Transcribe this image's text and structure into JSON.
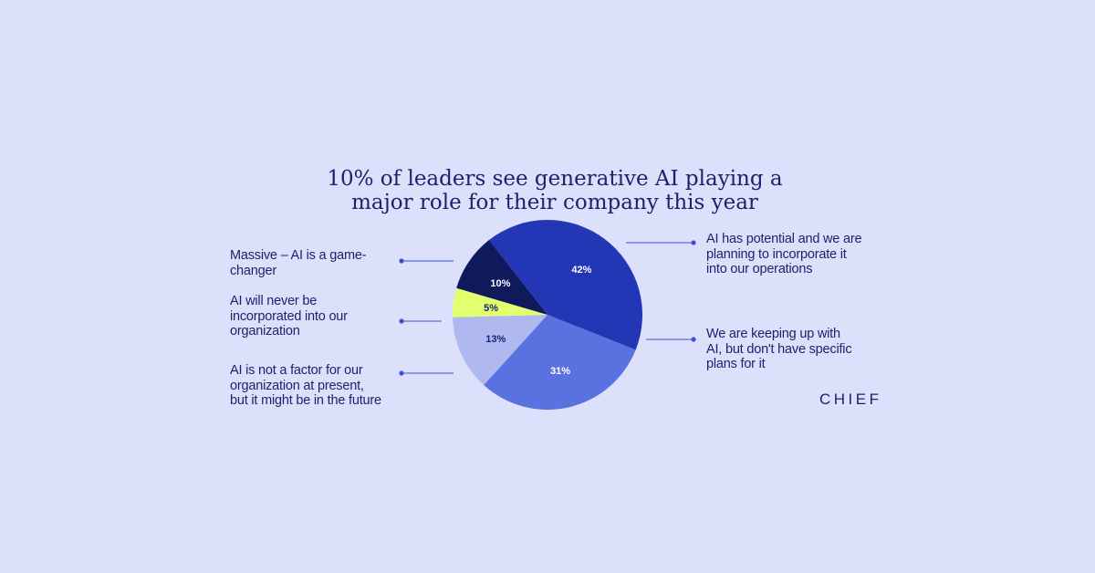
{
  "chart_data": {
    "type": "pie",
    "title_lines": [
      "10% of leaders see generative AI playing a",
      "major role for their company this year"
    ],
    "slices": [
      {
        "label_lines": [
          "AI has potential and we are",
          "planning to incorporate it",
          "into our operations"
        ],
        "value": 42,
        "value_label": "42%",
        "color": "#2236b6",
        "text_color": "#ffffff"
      },
      {
        "label_lines": [
          "We are keeping up with",
          "AI, but don't have specific",
          "plans for it"
        ],
        "value": 31,
        "value_label": "31%",
        "color": "#5a72e0",
        "text_color": "#ffffff"
      },
      {
        "label_lines": [
          "AI is not a factor for our",
          "organization at present,",
          "but it might be in the future"
        ],
        "value": 13,
        "value_label": "13%",
        "color": "#b0b8f0",
        "text_color": "#1a2370"
      },
      {
        "label_lines": [
          "AI will never be",
          "incorporated into our",
          "organization"
        ],
        "value": 5,
        "value_label": "5%",
        "color": "#e2ff70",
        "text_color": "#1a2370"
      },
      {
        "label_lines": [
          "Massive – AI is a game-",
          "changer"
        ],
        "value": 10,
        "value_label": "10%",
        "color": "#0f1a5c",
        "text_color": "#ffffff"
      }
    ],
    "accent_color": "#3a4fd6"
  },
  "brand": {
    "logo_text": "CHIEF"
  }
}
